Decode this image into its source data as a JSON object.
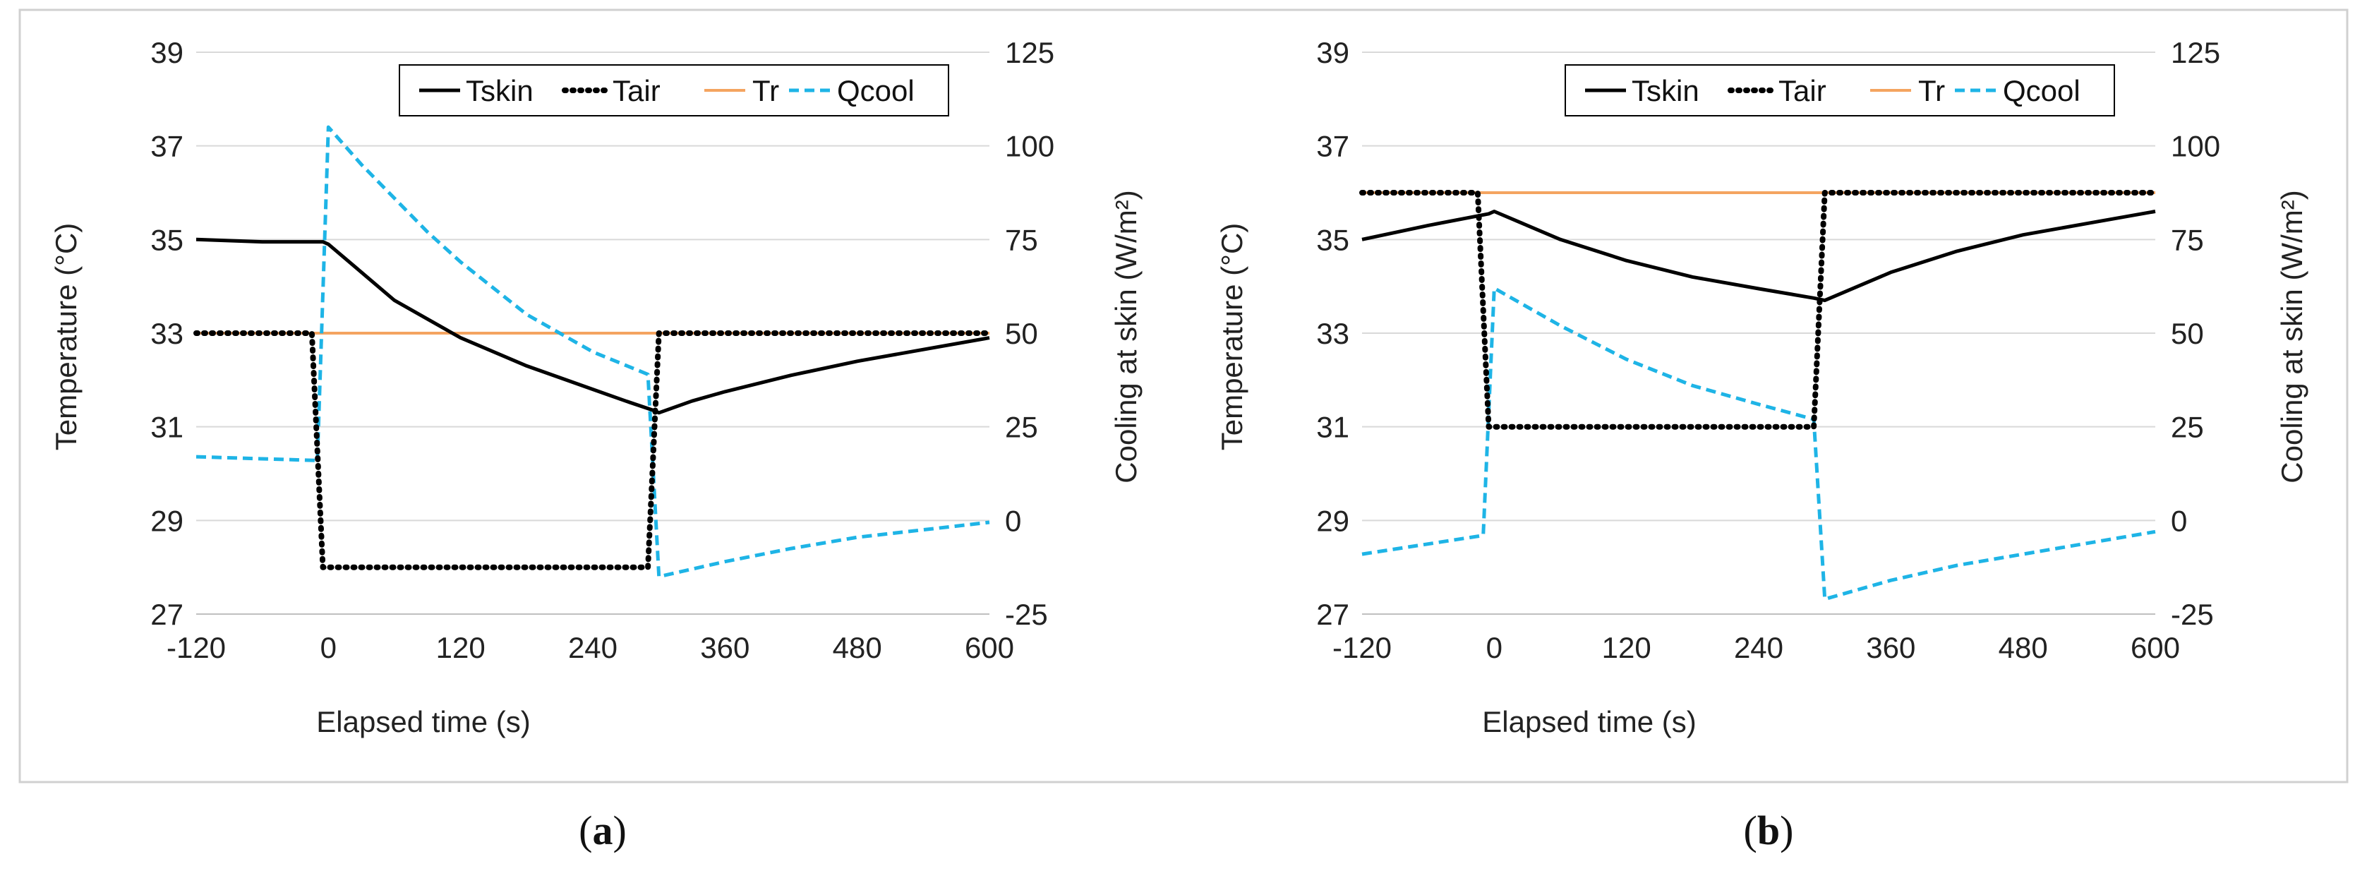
{
  "figure": {
    "panels": [
      {
        "label": "a",
        "caption_open": "(",
        "caption_close": ")"
      },
      {
        "label": "b",
        "caption_open": "(",
        "caption_close": ")"
      }
    ]
  },
  "colors": {
    "tskin": "#000000",
    "tair": "#000000",
    "tr": "#F4A460",
    "qcool": "#1EB4E6",
    "grid": "#D9D9D9",
    "frame": "#D0D0D0"
  },
  "chart_data": [
    {
      "type": "line",
      "title": "",
      "xlabel": "Elapsed time (s)",
      "ylabel_left": "Temperature (°C)",
      "ylabel_right": "Cooling at skin (W/m²)",
      "xlim": [
        -120,
        600
      ],
      "xticks": [
        -120,
        0,
        120,
        240,
        360,
        480,
        600
      ],
      "ylim_left": [
        27,
        39
      ],
      "yticks_left": [
        27,
        29,
        31,
        33,
        35,
        37,
        39
      ],
      "ylim_right": [
        -25,
        125
      ],
      "yticks_right": [
        -25,
        0,
        25,
        50,
        75,
        100,
        125
      ],
      "grid": "horizontal",
      "legend": "top-right",
      "series": [
        {
          "name": "Tskin",
          "axis": "left",
          "style": "solid",
          "x": [
            -120,
            -60,
            -5,
            0,
            30,
            60,
            90,
            120,
            180,
            240,
            270,
            295,
            300,
            330,
            360,
            420,
            480,
            540,
            600
          ],
          "y": [
            35.0,
            34.95,
            34.95,
            34.9,
            34.3,
            33.7,
            33.3,
            32.9,
            32.3,
            31.8,
            31.55,
            31.35,
            31.3,
            31.55,
            31.75,
            32.1,
            32.4,
            32.65,
            32.9
          ]
        },
        {
          "name": "Tair",
          "axis": "left",
          "style": "dotted",
          "x": [
            -120,
            -15,
            -5,
            290,
            300,
            600
          ],
          "y": [
            33.0,
            33.0,
            28.0,
            28.0,
            33.0,
            33.0
          ]
        },
        {
          "name": "Tr",
          "axis": "left",
          "style": "solid-thin",
          "x": [
            -120,
            600
          ],
          "y": [
            33.0,
            33.0
          ]
        },
        {
          "name": "Qcool",
          "axis": "right",
          "style": "dashed",
          "x": [
            -120,
            -10,
            0,
            30,
            60,
            90,
            120,
            180,
            240,
            290,
            300,
            360,
            420,
            480,
            540,
            600
          ],
          "y": [
            17,
            16,
            105,
            95,
            86,
            77,
            69,
            55,
            45,
            39,
            -15,
            -11,
            -7.5,
            -4.5,
            -2.5,
            -0.5
          ]
        }
      ]
    },
    {
      "type": "line",
      "title": "",
      "xlabel": "Elapsed time (s)",
      "ylabel_left": "Temperature (°C)",
      "ylabel_right": "Cooling at skin (W/m²)",
      "xlim": [
        -120,
        600
      ],
      "xticks": [
        -120,
        0,
        120,
        240,
        360,
        480,
        600
      ],
      "ylim_left": [
        27,
        39
      ],
      "yticks_left": [
        27,
        29,
        31,
        33,
        35,
        37,
        39
      ],
      "ylim_right": [
        -25,
        125
      ],
      "yticks_right": [
        -25,
        0,
        25,
        50,
        75,
        100,
        125
      ],
      "grid": "horizontal",
      "legend": "top-right",
      "series": [
        {
          "name": "Tskin",
          "axis": "left",
          "style": "solid",
          "x": [
            -120,
            -60,
            -5,
            0,
            30,
            60,
            120,
            180,
            240,
            290,
            300,
            330,
            360,
            420,
            480,
            540,
            600
          ],
          "y": [
            35.0,
            35.3,
            35.55,
            35.6,
            35.3,
            35.0,
            34.55,
            34.2,
            33.95,
            33.75,
            33.7,
            34.0,
            34.3,
            34.75,
            35.1,
            35.35,
            35.6
          ]
        },
        {
          "name": "Tair",
          "axis": "left",
          "style": "dotted",
          "x": [
            -120,
            -15,
            -5,
            290,
            300,
            600
          ],
          "y": [
            36.0,
            36.0,
            31.0,
            31.0,
            36.0,
            36.0
          ]
        },
        {
          "name": "Tr",
          "axis": "left",
          "style": "solid-thin",
          "x": [
            -120,
            600
          ],
          "y": [
            36.0,
            36.0
          ]
        },
        {
          "name": "Qcool",
          "axis": "right",
          "style": "dashed",
          "x": [
            -120,
            -10,
            0,
            30,
            60,
            120,
            180,
            240,
            290,
            300,
            360,
            420,
            480,
            540,
            600
          ],
          "y": [
            -9,
            -4,
            62,
            57,
            52,
            43,
            36,
            31,
            27,
            -21,
            -16,
            -12,
            -9,
            -6,
            -3
          ]
        }
      ]
    }
  ]
}
